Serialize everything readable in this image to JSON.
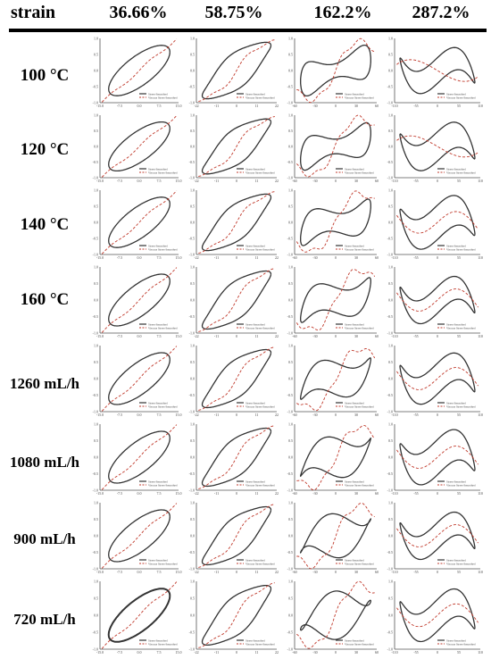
{
  "header": {
    "corner": "strain",
    "columns": [
      "36.66%",
      "58.75%",
      "162.2%",
      "287.2%"
    ]
  },
  "rows": [
    "100 °C",
    "120 °C",
    "140 °C",
    "160 °C",
    "1260 mL/h",
    "1080 mL/h",
    "900 mL/h",
    "720 mL/h"
  ],
  "legend": {
    "elastic": "Stress-Smoothed",
    "viscous": "Viscous Stress-Smoothed"
  },
  "chart_data": {
    "type": "line",
    "description_of_panels": "8 x 4 grid of Lissajous-Bowditch plots (normalized stress vs strain); black = stress loop, red dashed = viscous stress",
    "y_ticks": [
      "1.0",
      "0.5",
      "0.0",
      "-0.5",
      "-1.0"
    ],
    "columns": [
      {
        "strain_amplitude": "36.66%",
        "x_ticks": [
          "-15.0",
          "-7.5",
          "0.0",
          "7.5",
          "15.0"
        ],
        "loop_shape": "ellipse"
      },
      {
        "strain_amplitude": "58.75%",
        "x_ticks": [
          "-22",
          "-11",
          "0",
          "11",
          "22"
        ],
        "loop_shape": "rounded-parallelogram"
      },
      {
        "strain_amplitude": "162.2%",
        "x_ticks": [
          "-60",
          "-30",
          "0",
          "30",
          "60"
        ],
        "loop_shape": "secondary-loop"
      },
      {
        "strain_amplitude": "287.2%",
        "x_ticks": [
          "-110",
          "-55",
          "0",
          "55",
          "110"
        ],
        "loop_shape": "self-intersecting"
      }
    ],
    "colors": {
      "stress": "#333333",
      "viscous": "#c0392b",
      "axis": "#555555"
    }
  }
}
